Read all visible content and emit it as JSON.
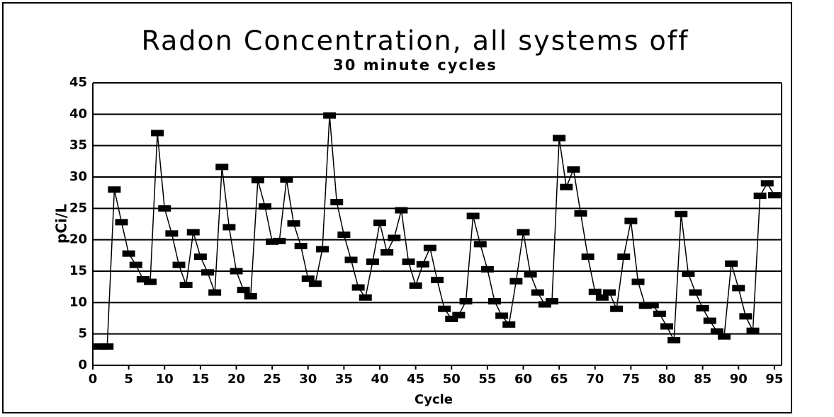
{
  "chart_data": {
    "type": "line",
    "title": "Radon Concentration,  all systems off",
    "subtitle": "30 minute cycles",
    "x_label": "Cycle",
    "y_label": "pCi/L",
    "x": [
      1,
      2,
      3,
      4,
      5,
      6,
      7,
      8,
      9,
      10,
      11,
      12,
      13,
      14,
      15,
      16,
      17,
      18,
      19,
      20,
      21,
      22,
      23,
      24,
      25,
      26,
      27,
      28,
      29,
      30,
      31,
      32,
      33,
      34,
      35,
      36,
      37,
      38,
      39,
      40,
      41,
      42,
      43,
      44,
      45,
      46,
      47,
      48,
      49,
      50,
      51,
      52,
      53,
      54,
      55,
      56,
      57,
      58,
      59,
      60,
      61,
      62,
      63,
      64,
      65,
      66,
      67,
      68,
      69,
      70,
      71,
      72,
      73,
      74,
      75,
      76,
      77,
      78,
      79,
      80,
      81,
      82,
      83,
      84,
      85,
      86,
      87,
      88,
      89,
      90,
      91,
      92,
      93,
      94,
      95
    ],
    "values": [
      3,
      3,
      28,
      22.8,
      17.8,
      16,
      13.7,
      13.3,
      37,
      25,
      21,
      16,
      12.8,
      21.2,
      17.3,
      14.8,
      11.6,
      31.6,
      22,
      15,
      12,
      11,
      29.5,
      25.3,
      19.7,
      19.8,
      29.6,
      22.6,
      19,
      13.8,
      13,
      18.5,
      39.8,
      26,
      20.8,
      16.8,
      12.4,
      10.8,
      16.5,
      22.7,
      18,
      20.3,
      24.7,
      16.5,
      12.7,
      16.1,
      18.7,
      13.6,
      9,
      7.4,
      8,
      10.2,
      23.8,
      19.3,
      15.3,
      10.2,
      7.9,
      6.5,
      13.4,
      21.2,
      14.5,
      11.6,
      9.7,
      10.2,
      36.2,
      28.4,
      31.2,
      24.2,
      17.3,
      11.7,
      10.8,
      11.6,
      9,
      17.3,
      23,
      13.3,
      9.5,
      9.6,
      8.2,
      6.2,
      4,
      24.1,
      14.6,
      11.6,
      9.1,
      7.1,
      5.4,
      4.6,
      16.2,
      12.3,
      7.8,
      5.5,
      27,
      29,
      27.1
    ],
    "color": "#000000",
    "xlim": [
      0,
      96
    ],
    "xticks": [
      0,
      5,
      10,
      15,
      20,
      25,
      30,
      35,
      40,
      45,
      50,
      55,
      60,
      65,
      70,
      75,
      80,
      85,
      90,
      95
    ],
    "ylim": [
      0,
      45
    ],
    "yticks": [
      0,
      5,
      10,
      15,
      20,
      25,
      30,
      35,
      40,
      45
    ],
    "grid": true
  }
}
